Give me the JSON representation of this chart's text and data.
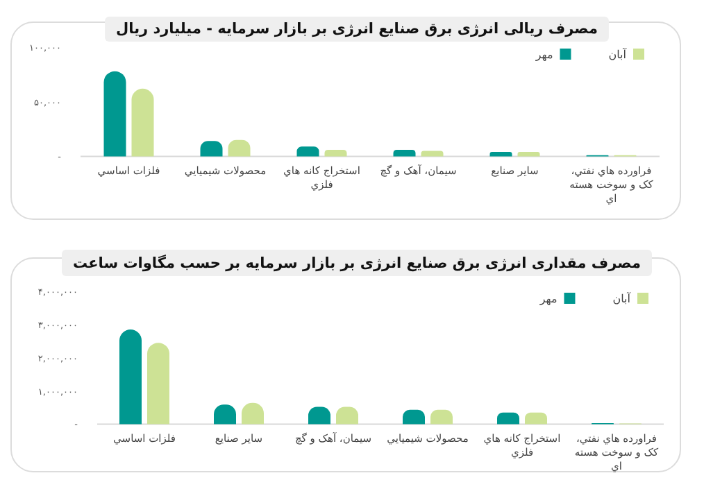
{
  "chart_data": [
    {
      "type": "bar",
      "title": "مصرف ریالی انرژی برق صنایع انرژی بر بازار سرمایه - میلیارد ریال",
      "categories": [
        "فلزات اساسي",
        "محصولات شيميايي",
        "استخراج کانه هاي فلزي",
        "سيمان، آهک و گچ",
        "ساير صنايع",
        "فراورده هاي نفتي، کک و سوخت هسته اي"
      ],
      "series": [
        {
          "name": "مهر",
          "color": "#009890",
          "values": [
            78000,
            14000,
            9000,
            6000,
            4000,
            1000
          ]
        },
        {
          "name": "آبان",
          "color": "#cde295",
          "values": [
            62000,
            15000,
            6000,
            5000,
            4000,
            1000
          ]
        }
      ],
      "ylim": [
        0,
        100000
      ],
      "yticks": [
        {
          "value": 0,
          "label": "-"
        },
        {
          "value": 50000,
          "label": "۵۰,۰۰۰"
        },
        {
          "value": 100000,
          "label": "۱۰۰,۰۰۰"
        }
      ],
      "legend": "top right"
    },
    {
      "type": "bar",
      "title": "مصرف مقداری انرژی برق صنایع انرژی بر بازار سرمایه بر حسب مگاوات ساعت",
      "categories": [
        "فلزات اساسي",
        "ساير صنايع",
        "سيمان، آهک و گچ",
        "محصولات شيميايي",
        "استخراج کانه هاي فلزي",
        "فراورده هاي نفتي، کک و سوخت هسته اي"
      ],
      "series": [
        {
          "name": "مهر",
          "color": "#009890",
          "values": [
            2850000,
            590000,
            520000,
            430000,
            350000,
            30000
          ]
        },
        {
          "name": "آبان",
          "color": "#cde295",
          "values": [
            2450000,
            640000,
            520000,
            430000,
            350000,
            20000
          ]
        }
      ],
      "ylim": [
        0,
        4000000
      ],
      "yticks": [
        {
          "value": 0,
          "label": "-"
        },
        {
          "value": 1000000,
          "label": "۱,۰۰۰,۰۰۰"
        },
        {
          "value": 2000000,
          "label": "۲,۰۰۰,۰۰۰"
        },
        {
          "value": 3000000,
          "label": "۳,۰۰۰,۰۰۰"
        },
        {
          "value": 4000000,
          "label": "۴,۰۰۰,۰۰۰"
        }
      ],
      "legend": "top right"
    }
  ]
}
